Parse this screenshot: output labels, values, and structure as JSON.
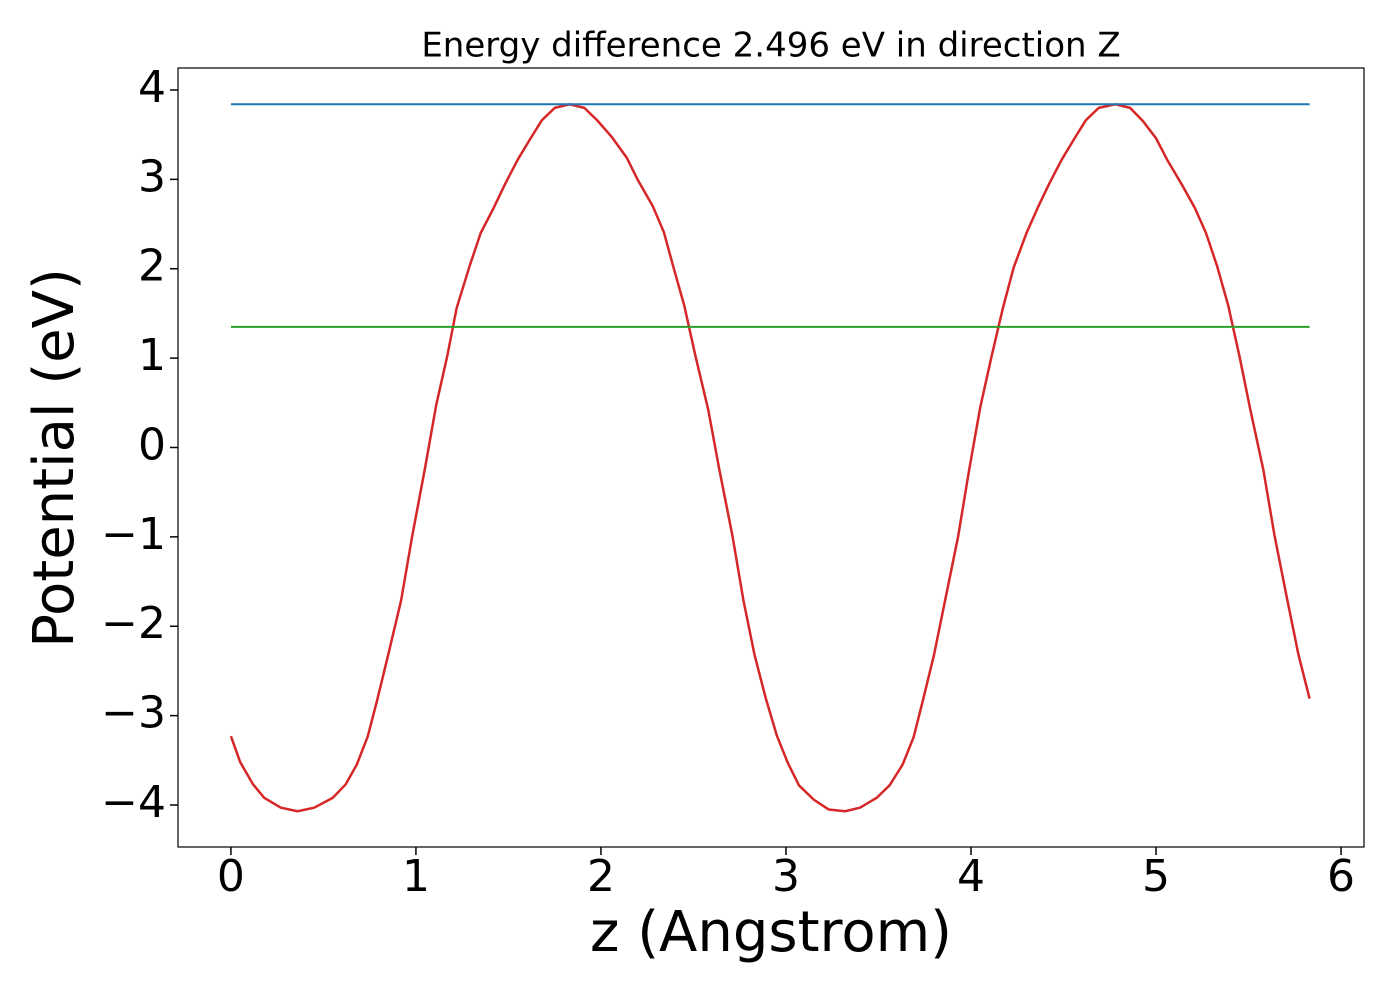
{
  "chart_data": {
    "type": "line",
    "title": "Energy difference 2.496 eV in direction Z",
    "xlabel": "z (Angstrom)",
    "ylabel": "Potential (eV)",
    "xlim": [
      -0.286,
      6.124
    ],
    "ylim": [
      -4.47,
      4.246
    ],
    "xticks": [
      0,
      1,
      2,
      3,
      4,
      5,
      6
    ],
    "yticks": [
      {
        "value": -4,
        "label": "−4"
      },
      {
        "value": -3,
        "label": "−3"
      },
      {
        "value": -2,
        "label": "−2"
      },
      {
        "value": -1,
        "label": "−1"
      },
      0,
      1,
      2,
      3,
      4
    ],
    "series": [
      {
        "color": "#d62728",
        "x": [
          0,
          0.05,
          0.12,
          0.18,
          0.27,
          0.36,
          0.45,
          0.55,
          0.62,
          0.68,
          0.74,
          0.79,
          0.85,
          0.92,
          0.98,
          1.05,
          1.11,
          1.17,
          1.22,
          1.29,
          1.35,
          1.42,
          1.48,
          1.55,
          1.62,
          1.68,
          1.75,
          1.83,
          1.91,
          1.98,
          2.06,
          2.14,
          2.2,
          2.28,
          2.34,
          2.39,
          2.45,
          2.51,
          2.58,
          2.64,
          2.71,
          2.77,
          2.83,
          2.89,
          2.95,
          3.01,
          3.07,
          3.15,
          3.23,
          3.32,
          3.4,
          3.49,
          3.56,
          3.63,
          3.69,
          3.74,
          3.8,
          3.86,
          3.93,
          3.99,
          4.05,
          4.11,
          4.17,
          4.23,
          4.3,
          4.36,
          4.42,
          4.49,
          4.56,
          4.62,
          4.69,
          4.78,
          4.86,
          4.93,
          5.0,
          5.06,
          5.14,
          5.21,
          5.27,
          5.33,
          5.39,
          5.45,
          5.51,
          5.58,
          5.64,
          5.71,
          5.77,
          5.83
        ],
        "values": [
          -3.23,
          -3.52,
          -3.77,
          -3.92,
          -4.03,
          -4.07,
          -4.03,
          -3.92,
          -3.77,
          -3.55,
          -3.23,
          -2.83,
          -2.32,
          -1.71,
          -0.99,
          -0.22,
          0.48,
          1.03,
          1.56,
          2.03,
          2.4,
          2.68,
          2.94,
          3.22,
          3.46,
          3.66,
          3.8,
          3.84,
          3.8,
          3.66,
          3.47,
          3.24,
          2.99,
          2.7,
          2.41,
          2.03,
          1.59,
          1.03,
          0.42,
          -0.25,
          -0.98,
          -1.71,
          -2.32,
          -2.8,
          -3.22,
          -3.53,
          -3.78,
          -3.94,
          -4.05,
          -4.07,
          -4.03,
          -3.92,
          -3.78,
          -3.55,
          -3.24,
          -2.83,
          -2.32,
          -1.71,
          -1.0,
          -0.25,
          0.45,
          1.01,
          1.54,
          2.01,
          2.4,
          2.68,
          2.94,
          3.22,
          3.46,
          3.66,
          3.8,
          3.84,
          3.8,
          3.65,
          3.46,
          3.22,
          2.94,
          2.68,
          2.4,
          2.03,
          1.59,
          1.03,
          0.42,
          -0.25,
          -0.98,
          -1.71,
          -2.32,
          -2.81
        ]
      },
      {
        "color": "#1f77b4",
        "x": [
          0,
          5.83
        ],
        "values": [
          3.84,
          3.84
        ]
      },
      {
        "color": "#2ca02c",
        "x": [
          0,
          5.83
        ],
        "values": [
          1.35,
          1.35
        ]
      }
    ]
  }
}
